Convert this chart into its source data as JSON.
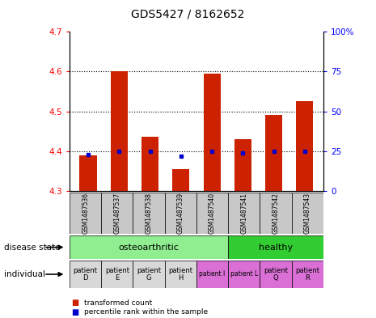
{
  "title": "GDS5427 / 8162652",
  "samples": [
    "GSM1487536",
    "GSM1487537",
    "GSM1487538",
    "GSM1487539",
    "GSM1487540",
    "GSM1487541",
    "GSM1487542",
    "GSM1487543"
  ],
  "red_values": [
    4.39,
    4.6,
    4.435,
    4.355,
    4.595,
    4.43,
    4.49,
    4.525
  ],
  "blue_values": [
    23,
    25,
    25,
    22,
    25,
    24,
    25,
    25
  ],
  "ylim_left": [
    4.3,
    4.7
  ],
  "ylim_right": [
    0,
    100
  ],
  "yticks_left": [
    4.3,
    4.4,
    4.5,
    4.6,
    4.7
  ],
  "yticks_right": [
    0,
    25,
    50,
    75,
    100
  ],
  "individuals": [
    "patient\nD",
    "patient\nE",
    "patient\nG",
    "patient\nH",
    "patient I",
    "patient L",
    "patient\nQ",
    "patient\nR"
  ],
  "individual_fontsize_large": [
    true,
    true,
    true,
    true,
    false,
    false,
    true,
    true
  ],
  "osteoarthritic_color": "#90EE90",
  "healthy_color": "#32CD32",
  "individual_colors": [
    "#D8D8D8",
    "#D8D8D8",
    "#D8D8D8",
    "#D8D8D8",
    "#DA70D6",
    "#DA70D6",
    "#DA70D6",
    "#DA70D6"
  ],
  "bar_color": "#CC2200",
  "dot_color": "#0000CC",
  "bar_bottom": 4.3,
  "sample_bg_color": "#C8C8C8",
  "hgrid_vals": [
    4.4,
    4.5,
    4.6
  ],
  "osteoarthritic_count": 5,
  "healthy_count": 3
}
